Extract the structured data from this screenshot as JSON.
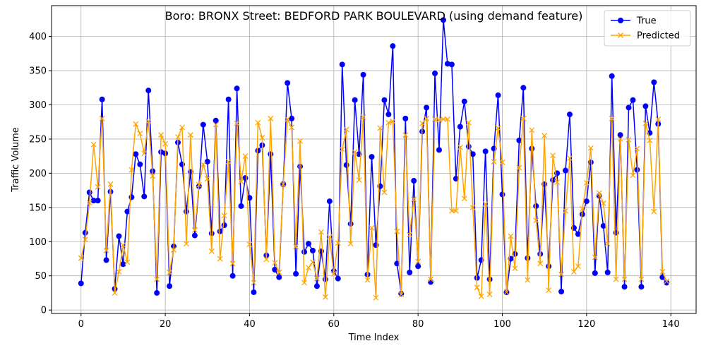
{
  "chart_data": {
    "type": "line",
    "title": "Boro: BRONX Street: BEDFORD PARK BOULEVARD (using demand feature)",
    "xlabel": "Time Index",
    "ylabel": "Traffic Volume",
    "xlim": [
      -7,
      146
    ],
    "ylim": [
      -5,
      445
    ],
    "xticks": [
      0,
      20,
      40,
      60,
      80,
      100,
      120,
      140
    ],
    "yticks": [
      0,
      50,
      100,
      150,
      200,
      250,
      300,
      350,
      400
    ],
    "grid": true,
    "legend_position": "top-right",
    "series": [
      {
        "name": "True",
        "color": "#0000ff",
        "marker": "circle",
        "values": [
          39,
          113,
          172,
          160,
          160,
          308,
          73,
          173,
          31,
          108,
          67,
          144,
          165,
          228,
          213,
          166,
          321,
          203,
          25,
          231,
          229,
          35,
          93,
          245,
          213,
          144,
          202,
          109,
          181,
          271,
          217,
          112,
          277,
          115,
          124,
          308,
          50,
          324,
          152,
          193,
          164,
          26,
          233,
          241,
          80,
          228,
          59,
          48,
          184,
          332,
          280,
          53,
          210,
          85,
          97,
          87,
          35,
          86,
          45,
          159,
          57,
          46,
          359,
          212,
          126,
          307,
          228,
          344,
          52,
          224,
          95,
          181,
          307,
          286,
          386,
          68,
          24,
          280,
          55,
          189,
          64,
          261,
          296,
          41,
          346,
          234,
          424,
          360,
          359,
          192,
          268,
          305,
          239,
          228,
          47,
          73,
          232,
          45,
          236,
          314,
          169,
          26,
          75,
          82,
          248,
          325,
          76,
          236,
          152,
          82,
          184,
          64,
          190,
          200,
          27,
          204,
          286,
          120,
          111,
          140,
          159,
          216,
          54,
          167,
          123,
          55,
          342,
          113,
          256,
          34,
          296,
          307,
          205,
          34,
          298,
          259,
          333,
          272,
          48,
          40
        ]
      },
      {
        "name": "Predicted",
        "color": "#ffa500",
        "marker": "x",
        "values": [
          76,
          103,
          157,
          242,
          180,
          280,
          87,
          184,
          25,
          56,
          95,
          70,
          205,
          272,
          258,
          229,
          276,
          196,
          45,
          256,
          243,
          55,
          88,
          253,
          267,
          97,
          256,
          117,
          183,
          213,
          192,
          86,
          271,
          75,
          138,
          217,
          68,
          273,
          188,
          225,
          96,
          40,
          274,
          252,
          74,
          280,
          69,
          55,
          184,
          279,
          267,
          93,
          247,
          40,
          62,
          70,
          46,
          114,
          19,
          107,
          53,
          98,
          235,
          264,
          97,
          231,
          190,
          282,
          44,
          120,
          18,
          266,
          172,
          274,
          276,
          115,
          23,
          256,
          110,
          162,
          71,
          273,
          280,
          45,
          279,
          278,
          279,
          279,
          145,
          145,
          238,
          163,
          274,
          150,
          33,
          20,
          155,
          23,
          217,
          266,
          216,
          26,
          108,
          61,
          208,
          280,
          44,
          263,
          131,
          68,
          255,
          29,
          226,
          187,
          52,
          145,
          222,
          56,
          64,
          148,
          186,
          237,
          77,
          171,
          156,
          97,
          280,
          45,
          250,
          45,
          249,
          197,
          236,
          45,
          273,
          248,
          144,
          279,
          56,
          42
        ]
      }
    ]
  }
}
